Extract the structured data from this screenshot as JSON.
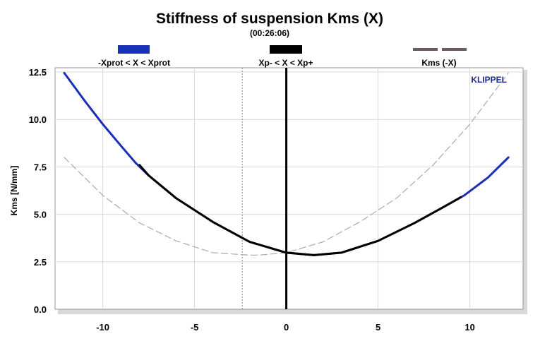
{
  "chart_data": {
    "type": "line",
    "title": "Stiffness of suspension Kms (X)",
    "subtitle": "(00:26:06)",
    "ylabel": "Kms [N/mm]",
    "xlabel": "",
    "brand": "KLIPPEL",
    "xlim": [
      -12.6,
      12.9
    ],
    "ylim": [
      0,
      12.5
    ],
    "xticks": [
      -10,
      -5,
      0,
      5,
      10
    ],
    "xtick_labels": [
      "-10",
      "-5",
      "0",
      "5",
      "10"
    ],
    "yticks": [
      0,
      2.5,
      5,
      7.5,
      10,
      12.5
    ],
    "ytick_labels": [
      "0.0",
      "2.5",
      "5.0",
      "7.5",
      "10.0",
      "12.5"
    ],
    "grid": true,
    "legend_placement": "top",
    "legend": [
      {
        "label": "-Xprot < X < Xprot",
        "color": "#1a2fb8",
        "style": "solid"
      },
      {
        "label": "Xp- < X < Xp+",
        "color": "#000000",
        "style": "solid"
      },
      {
        "label": "Kms (-X)",
        "color": "#6e5a5a",
        "style": "dashed"
      }
    ],
    "vlines": [
      {
        "x": 0,
        "color": "#000000",
        "style": "solid"
      },
      {
        "x": -2.4,
        "color": "#888888",
        "style": "dotted"
      }
    ],
    "series": [
      {
        "name": "-Xprot < X < Xprot",
        "color": "#1a2fb8",
        "style": "solid",
        "x": [
          -12.1,
          -11,
          -10,
          -9,
          -8.2,
          -7.5,
          -6,
          -4,
          -2,
          0,
          1.5,
          3,
          5,
          7,
          8.5,
          9.7,
          11,
          12.1
        ],
        "values": [
          12.45,
          11.0,
          9.75,
          8.6,
          7.7,
          7.05,
          5.85,
          4.6,
          3.55,
          2.98,
          2.85,
          2.98,
          3.6,
          4.55,
          5.35,
          6.0,
          6.95,
          8.0
        ]
      },
      {
        "name": "Xp- < X < Xp+",
        "color": "#000000",
        "style": "solid",
        "x": [
          -8.0,
          -7.5,
          -6,
          -4,
          -2,
          0,
          1.5,
          3,
          5,
          7,
          8.5,
          9.5
        ],
        "values": [
          7.6,
          7.05,
          5.85,
          4.6,
          3.55,
          2.98,
          2.85,
          2.98,
          3.6,
          4.55,
          5.35,
          5.9
        ]
      },
      {
        "name": "Kms (-X)",
        "color": "#b0b0b0",
        "style": "dashed",
        "x": [
          -12.1,
          -11,
          -10,
          -8,
          -6,
          -4,
          -2,
          -1.5,
          0,
          2,
          4,
          6,
          8,
          10,
          12.1
        ],
        "values": [
          8.0,
          6.95,
          6.0,
          4.55,
          3.6,
          2.98,
          2.85,
          2.85,
          2.98,
          3.55,
          4.6,
          5.85,
          7.6,
          9.75,
          12.45
        ]
      }
    ]
  }
}
